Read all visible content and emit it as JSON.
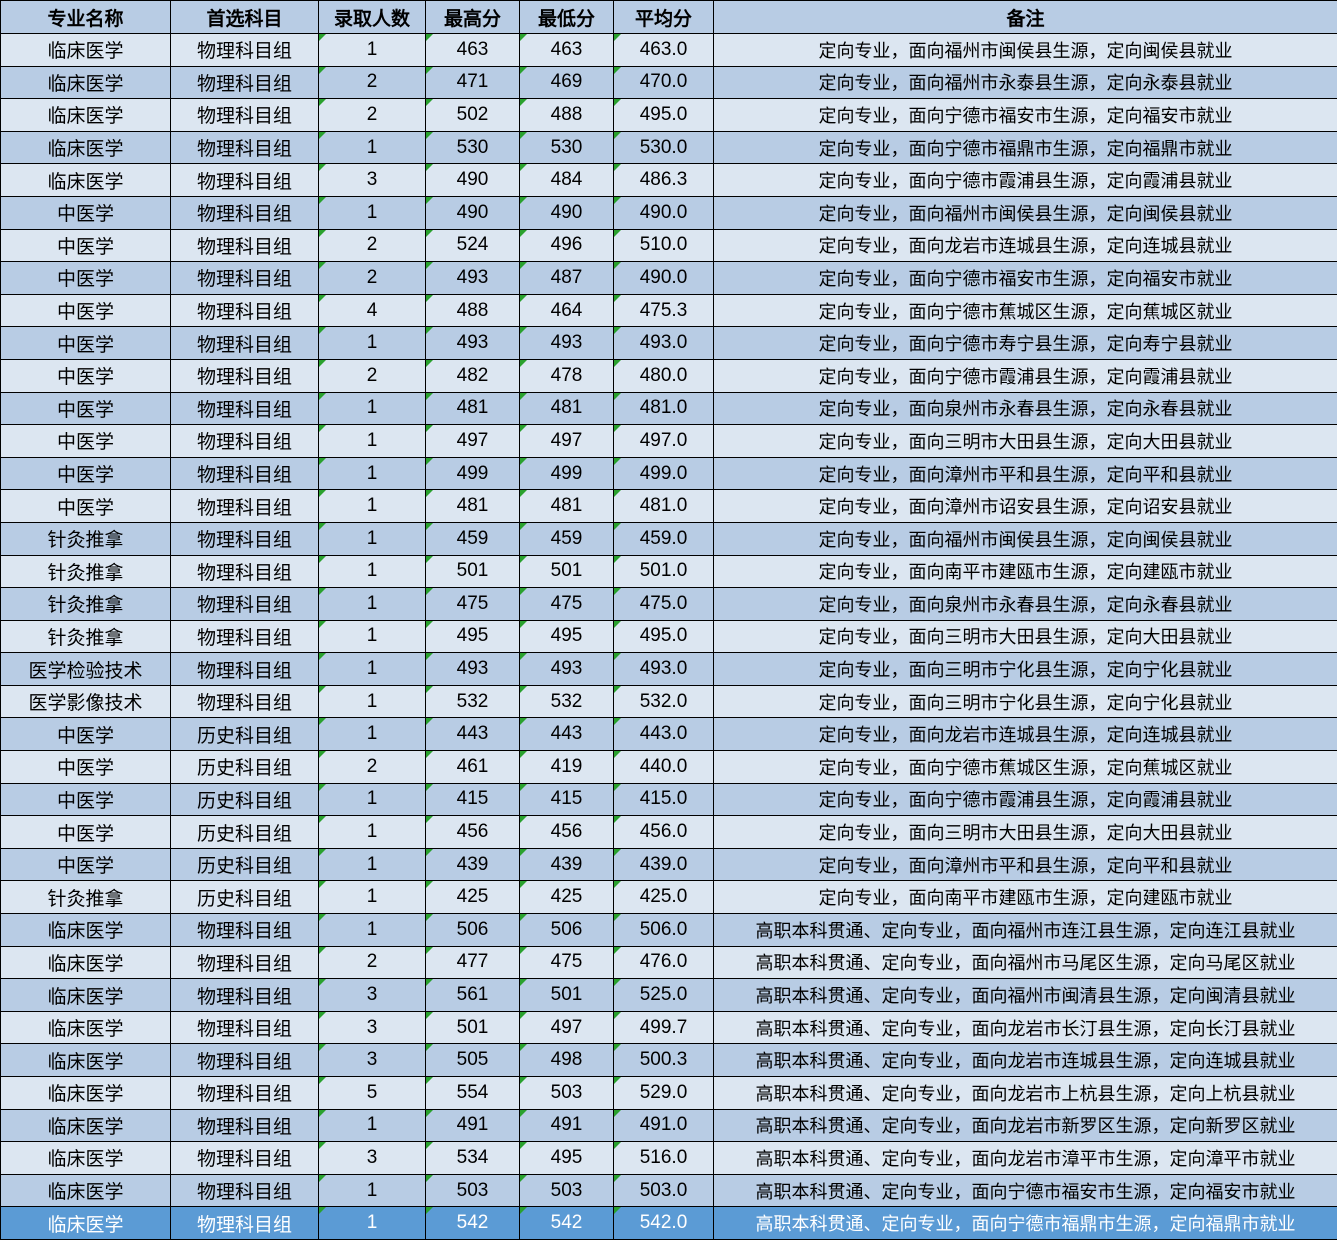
{
  "table": {
    "columns": [
      "专业名称",
      "首选科目",
      "录取人数",
      "最高分",
      "最低分",
      "平均分",
      "备注"
    ],
    "selected_row_index": 36,
    "rows": [
      [
        "临床医学",
        "物理科目组",
        "1",
        "463",
        "463",
        "463.0",
        "定向专业，面向福州市闽侯县生源，定向闽侯县就业"
      ],
      [
        "临床医学",
        "物理科目组",
        "2",
        "471",
        "469",
        "470.0",
        "定向专业，面向福州市永泰县生源，定向永泰县就业"
      ],
      [
        "临床医学",
        "物理科目组",
        "2",
        "502",
        "488",
        "495.0",
        "定向专业，面向宁德市福安市生源，定向福安市就业"
      ],
      [
        "临床医学",
        "物理科目组",
        "1",
        "530",
        "530",
        "530.0",
        "定向专业，面向宁德市福鼎市生源，定向福鼎市就业"
      ],
      [
        "临床医学",
        "物理科目组",
        "3",
        "490",
        "484",
        "486.3",
        "定向专业，面向宁德市霞浦县生源，定向霞浦县就业"
      ],
      [
        "中医学",
        "物理科目组",
        "1",
        "490",
        "490",
        "490.0",
        "定向专业，面向福州市闽侯县生源，定向闽侯县就业"
      ],
      [
        "中医学",
        "物理科目组",
        "2",
        "524",
        "496",
        "510.0",
        "定向专业，面向龙岩市连城县生源，定向连城县就业"
      ],
      [
        "中医学",
        "物理科目组",
        "2",
        "493",
        "487",
        "490.0",
        "定向专业，面向宁德市福安市生源，定向福安市就业"
      ],
      [
        "中医学",
        "物理科目组",
        "4",
        "488",
        "464",
        "475.3",
        "定向专业，面向宁德市蕉城区生源，定向蕉城区就业"
      ],
      [
        "中医学",
        "物理科目组",
        "1",
        "493",
        "493",
        "493.0",
        "定向专业，面向宁德市寿宁县生源，定向寿宁县就业"
      ],
      [
        "中医学",
        "物理科目组",
        "2",
        "482",
        "478",
        "480.0",
        "定向专业，面向宁德市霞浦县生源，定向霞浦县就业"
      ],
      [
        "中医学",
        "物理科目组",
        "1",
        "481",
        "481",
        "481.0",
        "定向专业，面向泉州市永春县生源，定向永春县就业"
      ],
      [
        "中医学",
        "物理科目组",
        "1",
        "497",
        "497",
        "497.0",
        "定向专业，面向三明市大田县生源，定向大田县就业"
      ],
      [
        "中医学",
        "物理科目组",
        "1",
        "499",
        "499",
        "499.0",
        "定向专业，面向漳州市平和县生源，定向平和县就业"
      ],
      [
        "中医学",
        "物理科目组",
        "1",
        "481",
        "481",
        "481.0",
        "定向专业，面向漳州市诏安县生源，定向诏安县就业"
      ],
      [
        "针灸推拿",
        "物理科目组",
        "1",
        "459",
        "459",
        "459.0",
        "定向专业，面向福州市闽侯县生源，定向闽侯县就业"
      ],
      [
        "针灸推拿",
        "物理科目组",
        "1",
        "501",
        "501",
        "501.0",
        "定向专业，面向南平市建瓯市生源，定向建瓯市就业"
      ],
      [
        "针灸推拿",
        "物理科目组",
        "1",
        "475",
        "475",
        "475.0",
        "定向专业，面向泉州市永春县生源，定向永春县就业"
      ],
      [
        "针灸推拿",
        "物理科目组",
        "1",
        "495",
        "495",
        "495.0",
        "定向专业，面向三明市大田县生源，定向大田县就业"
      ],
      [
        "医学检验技术",
        "物理科目组",
        "1",
        "493",
        "493",
        "493.0",
        "定向专业，面向三明市宁化县生源，定向宁化县就业"
      ],
      [
        "医学影像技术",
        "物理科目组",
        "1",
        "532",
        "532",
        "532.0",
        "定向专业，面向三明市宁化县生源，定向宁化县就业"
      ],
      [
        "中医学",
        "历史科目组",
        "1",
        "443",
        "443",
        "443.0",
        "定向专业，面向龙岩市连城县生源，定向连城县就业"
      ],
      [
        "中医学",
        "历史科目组",
        "2",
        "461",
        "419",
        "440.0",
        "定向专业，面向宁德市蕉城区生源，定向蕉城区就业"
      ],
      [
        "中医学",
        "历史科目组",
        "1",
        "415",
        "415",
        "415.0",
        "定向专业，面向宁德市霞浦县生源，定向霞浦县就业"
      ],
      [
        "中医学",
        "历史科目组",
        "1",
        "456",
        "456",
        "456.0",
        "定向专业，面向三明市大田县生源，定向大田县就业"
      ],
      [
        "中医学",
        "历史科目组",
        "1",
        "439",
        "439",
        "439.0",
        "定向专业，面向漳州市平和县生源，定向平和县就业"
      ],
      [
        "针灸推拿",
        "历史科目组",
        "1",
        "425",
        "425",
        "425.0",
        "定向专业，面向南平市建瓯市生源，定向建瓯市就业"
      ],
      [
        "临床医学",
        "物理科目组",
        "1",
        "506",
        "506",
        "506.0",
        "高职本科贯通、定向专业，面向福州市连江县生源，定向连江县就业"
      ],
      [
        "临床医学",
        "物理科目组",
        "2",
        "477",
        "475",
        "476.0",
        "高职本科贯通、定向专业，面向福州市马尾区生源，定向马尾区就业"
      ],
      [
        "临床医学",
        "物理科目组",
        "3",
        "561",
        "501",
        "525.0",
        "高职本科贯通、定向专业，面向福州市闽清县生源，定向闽清县就业"
      ],
      [
        "临床医学",
        "物理科目组",
        "3",
        "501",
        "497",
        "499.7",
        "高职本科贯通、定向专业，面向龙岩市长汀县生源，定向长汀县就业"
      ],
      [
        "临床医学",
        "物理科目组",
        "3",
        "505",
        "498",
        "500.3",
        "高职本科贯通、定向专业，面向龙岩市连城县生源，定向连城县就业"
      ],
      [
        "临床医学",
        "物理科目组",
        "5",
        "554",
        "503",
        "529.0",
        "高职本科贯通、定向专业，面向龙岩市上杭县生源，定向上杭县就业"
      ],
      [
        "临床医学",
        "物理科目组",
        "1",
        "491",
        "491",
        "491.0",
        "高职本科贯通、定向专业，面向龙岩市新罗区生源，定向新罗区就业"
      ],
      [
        "临床医学",
        "物理科目组",
        "3",
        "534",
        "495",
        "516.0",
        "高职本科贯通、定向专业，面向龙岩市漳平市生源，定向漳平市就业"
      ],
      [
        "临床医学",
        "物理科目组",
        "1",
        "503",
        "503",
        "503.0",
        "高职本科贯通、定向专业，面向宁德市福安市生源，定向福安市就业"
      ],
      [
        "临床医学",
        "物理科目组",
        "1",
        "542",
        "542",
        "542.0",
        "高职本科贯通、定向专业，面向宁德市福鼎市生源，定向福鼎市就业"
      ]
    ]
  },
  "colors": {
    "header_bg": "#b8cce4",
    "row_light": "#dce6f1",
    "row_medium": "#b8cce4",
    "selected_bg": "#5b9bd5",
    "selected_text": "#ffffff",
    "border": "#000000",
    "triangle_green": "#2aa12e",
    "text": "#000000"
  }
}
